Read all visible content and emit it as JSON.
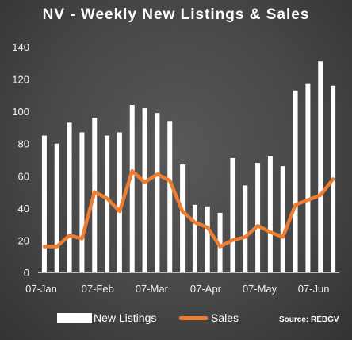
{
  "chart_data": {
    "type": "bar",
    "title": "NV - Weekly New Listings & Sales",
    "xlabel": "",
    "ylabel": "",
    "ylim": [
      0,
      140
    ],
    "yticks": [
      0,
      20,
      40,
      60,
      80,
      100,
      120,
      140
    ],
    "x_tick_labels": [
      "07-Jan",
      "07-Feb",
      "07-Mar",
      "07-Apr",
      "07-May",
      "07-Jun"
    ],
    "legend_placement": "bottom",
    "grid": false,
    "series": [
      {
        "name": "New Listings",
        "type": "bar",
        "color": "#ffffff",
        "values": [
          85,
          80,
          93,
          87,
          96,
          85,
          87,
          104,
          102,
          99,
          94,
          67,
          42,
          41,
          37,
          71,
          54,
          68,
          72,
          66,
          113,
          117,
          131,
          116
        ]
      },
      {
        "name": "Sales",
        "type": "line",
        "color": "#ed7d31",
        "values": [
          16,
          16,
          23,
          21,
          50,
          46,
          38,
          63,
          56,
          61,
          57,
          38,
          31,
          28,
          16,
          20,
          22,
          29,
          25,
          22,
          42,
          45,
          48,
          58
        ]
      }
    ]
  },
  "source": "Source: REBGV"
}
